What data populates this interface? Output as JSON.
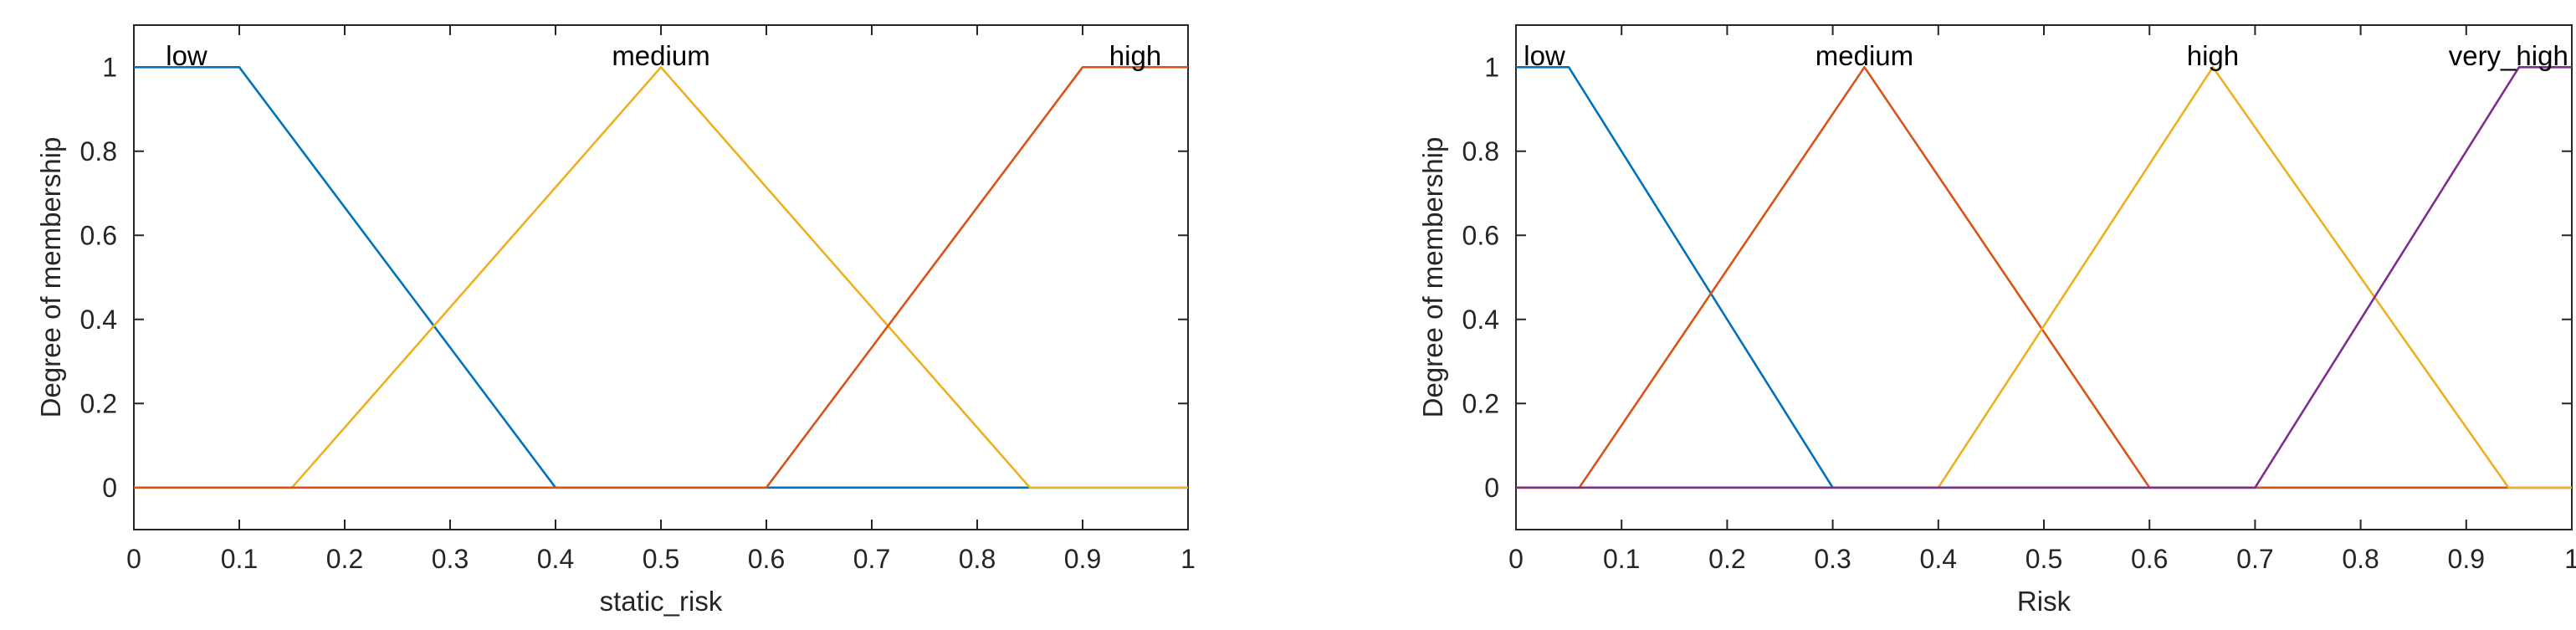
{
  "chart_data": [
    {
      "type": "line",
      "title": "",
      "xlabel": "static_risk",
      "ylabel": "Degree of membership",
      "xlim": [
        0,
        1
      ],
      "ylim": [
        -0.1,
        1.1
      ],
      "x_ticks": [
        0,
        0.1,
        0.2,
        0.3,
        0.4,
        0.5,
        0.6,
        0.7,
        0.8,
        0.9,
        1
      ],
      "x_tick_labels": [
        "0",
        "0.1",
        "0.2",
        "0.3",
        "0.4",
        "0.5",
        "0.6",
        "0.7",
        "0.8",
        "0.9",
        "1"
      ],
      "y_ticks": [
        0,
        0.2,
        0.4,
        0.6,
        0.8,
        1
      ],
      "y_tick_labels": [
        "0",
        "0.2",
        "0.4",
        "0.6",
        "0.8",
        "1"
      ],
      "grid": false,
      "series": [
        {
          "name": "low",
          "color": "#0072BD",
          "x": [
            0,
            0.1,
            0.4,
            1
          ],
          "y": [
            1,
            1,
            0,
            0
          ],
          "label_x": 0.05
        },
        {
          "name": "medium",
          "color": "#EDB120",
          "x": [
            0,
            0.15,
            0.5,
            0.85,
            1
          ],
          "y": [
            0,
            0,
            1,
            0,
            0
          ],
          "label_x": 0.5
        },
        {
          "name": "high",
          "color": "#D95319",
          "x": [
            0,
            0.6,
            0.9,
            1
          ],
          "y": [
            0,
            0,
            1,
            1
          ],
          "label_x": 0.95
        }
      ]
    },
    {
      "type": "line",
      "title": "",
      "xlabel": "Risk",
      "ylabel": "Degree of membership",
      "xlim": [
        0,
        1
      ],
      "ylim": [
        -0.1,
        1.1
      ],
      "x_ticks": [
        0,
        0.1,
        0.2,
        0.3,
        0.4,
        0.5,
        0.6,
        0.7,
        0.8,
        0.9,
        1
      ],
      "x_tick_labels": [
        "0",
        "0.1",
        "0.2",
        "0.3",
        "0.4",
        "0.5",
        "0.6",
        "0.7",
        "0.8",
        "0.9",
        "1"
      ],
      "y_ticks": [
        0,
        0.2,
        0.4,
        0.6,
        0.8,
        1
      ],
      "y_tick_labels": [
        "0",
        "0.2",
        "0.4",
        "0.6",
        "0.8",
        "1"
      ],
      "grid": false,
      "series": [
        {
          "name": "low",
          "color": "#0072BD",
          "x": [
            0,
            0.05,
            0.3,
            1
          ],
          "y": [
            1,
            1,
            0,
            0
          ],
          "label_x": 0.027
        },
        {
          "name": "medium",
          "color": "#D95319",
          "x": [
            0,
            0.06,
            0.33,
            0.6,
            1
          ],
          "y": [
            0,
            0,
            1,
            0,
            0
          ],
          "label_x": 0.33
        },
        {
          "name": "high",
          "color": "#EDB120",
          "x": [
            0,
            0.4,
            0.66,
            0.94,
            1
          ],
          "y": [
            0,
            0,
            1,
            0,
            0
          ],
          "label_x": 0.66
        },
        {
          "name": "very_high",
          "color": "#7E2F8E",
          "x": [
            0,
            0.7,
            0.95,
            1
          ],
          "y": [
            0,
            0,
            1,
            1
          ],
          "label_x": 0.94
        }
      ]
    }
  ]
}
